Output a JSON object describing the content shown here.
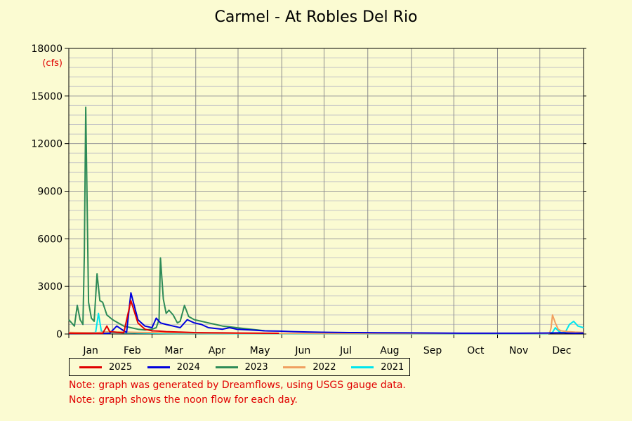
{
  "title": "Carmel - At Robles Del Rio",
  "notes": [
    "Note: graph was generated by Dreamflows, using USGS gauge data.",
    "Note: graph shows the noon flow for each day."
  ],
  "chart_data": {
    "type": "line",
    "title": "Carmel - At Robles Del Rio",
    "ylabel": "(cfs)",
    "ylim": [
      0,
      18000
    ],
    "yticks": [
      0,
      3000,
      6000,
      9000,
      12000,
      15000,
      18000
    ],
    "xlabels": [
      "Jan",
      "Feb",
      "Mar",
      "Apr",
      "May",
      "Jun",
      "Jul",
      "Aug",
      "Sep",
      "Oct",
      "Nov",
      "Dec"
    ],
    "x_unit": "day of year",
    "xlim": [
      1,
      366
    ],
    "grid": true,
    "legend_position": "bottom",
    "series": [
      {
        "name": "2025",
        "color": "#e00000",
        "x": [
          1,
          10,
          20,
          25,
          28,
          30,
          33,
          35,
          40,
          45,
          50,
          55,
          60,
          65,
          70,
          80,
          90,
          100,
          110,
          120,
          130,
          140,
          150
        ],
        "y": [
          50,
          40,
          35,
          40,
          500,
          150,
          120,
          100,
          80,
          2100,
          700,
          300,
          200,
          180,
          150,
          120,
          90,
          80,
          70,
          60,
          55,
          50,
          45
        ]
      },
      {
        "name": "2024",
        "color": "#0000dd",
        "x": [
          1,
          10,
          20,
          30,
          35,
          40,
          42,
          45,
          50,
          55,
          60,
          63,
          66,
          70,
          75,
          80,
          85,
          90,
          95,
          100,
          105,
          110,
          115,
          120,
          130,
          140,
          150,
          160,
          170,
          180,
          190,
          200,
          220,
          240,
          260,
          280,
          300,
          320,
          340,
          350,
          355,
          360,
          366
        ],
        "y": [
          30,
          40,
          35,
          40,
          500,
          200,
          100,
          2600,
          900,
          500,
          400,
          1000,
          700,
          600,
          500,
          400,
          900,
          700,
          600,
          400,
          350,
          300,
          400,
          300,
          250,
          200,
          180,
          150,
          130,
          110,
          100,
          90,
          80,
          70,
          60,
          50,
          50,
          50,
          60,
          80,
          60,
          50,
          60
        ]
      },
      {
        "name": "2023",
        "color": "#2e8b57",
        "x": [
          1,
          3,
          5,
          7,
          9,
          11,
          12,
          13,
          15,
          17,
          19,
          21,
          23,
          25,
          28,
          32,
          36,
          40,
          45,
          50,
          55,
          60,
          63,
          65,
          66,
          68,
          70,
          72,
          75,
          78,
          80,
          83,
          86,
          90,
          95,
          100,
          105,
          110,
          115,
          120,
          125,
          130,
          135,
          140
        ],
        "y": [
          900,
          700,
          500,
          1800,
          900,
          600,
          5000,
          14300,
          2000,
          1000,
          800,
          3800,
          2100,
          2000,
          1200,
          900,
          700,
          500,
          400,
          300,
          250,
          300,
          400,
          900,
          4800,
          2200,
          1300,
          1500,
          1200,
          700,
          800,
          1800,
          1100,
          900,
          800,
          700,
          600,
          500,
          450,
          400,
          350,
          300,
          250,
          200
        ]
      },
      {
        "name": "2022",
        "color": "#f0a060",
        "x": [
          1,
          10,
          20,
          30,
          40,
          50,
          60,
          70,
          80,
          90,
          100,
          110,
          120,
          130,
          140,
          150,
          160,
          170,
          180,
          190,
          200,
          220,
          240,
          260,
          280,
          300,
          320,
          340,
          342,
          343,
          344,
          346,
          348,
          350,
          355,
          360,
          366
        ],
        "y": [
          100,
          90,
          80,
          150,
          120,
          100,
          90,
          80,
          70,
          60,
          55,
          50,
          45,
          40,
          35,
          30,
          30,
          30,
          28,
          28,
          28,
          28,
          28,
          28,
          28,
          28,
          28,
          30,
          60,
          400,
          1200,
          700,
          300,
          200,
          150,
          120,
          100
        ]
      },
      {
        "name": "2021",
        "color": "#00e5ee",
        "x": [
          1,
          5,
          10,
          15,
          20,
          22,
          24,
          25,
          27,
          30,
          35,
          40,
          45,
          50,
          55,
          60,
          65,
          70,
          80,
          90,
          100,
          110,
          120,
          130,
          140,
          150,
          160,
          170,
          180,
          200,
          220,
          240,
          260,
          280,
          300,
          320,
          340,
          344,
          346,
          348,
          350,
          353,
          356,
          359,
          362,
          366
        ],
        "y": [
          80,
          60,
          50,
          60,
          100,
          1300,
          200,
          150,
          120,
          100,
          90,
          80,
          70,
          60,
          55,
          50,
          45,
          40,
          35,
          30,
          28,
          25,
          22,
          20,
          18,
          16,
          15,
          14,
          13,
          12,
          12,
          12,
          12,
          12,
          12,
          12,
          14,
          100,
          400,
          200,
          80,
          100,
          600,
          800,
          500,
          400
        ]
      }
    ]
  }
}
